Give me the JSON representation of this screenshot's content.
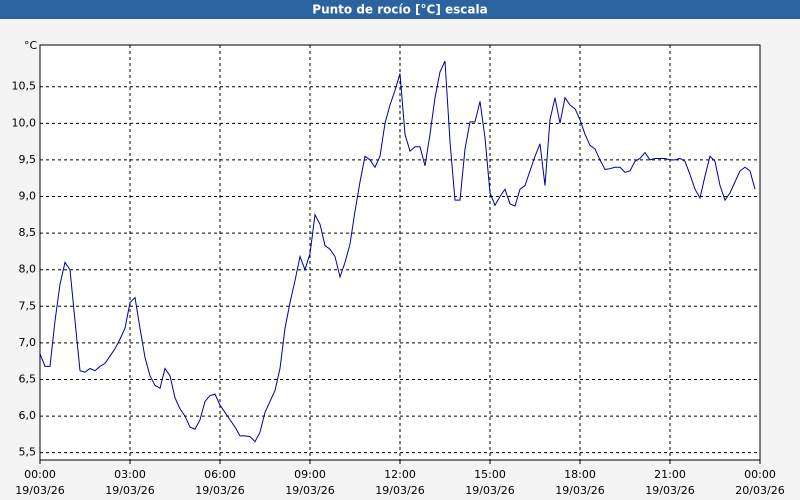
{
  "chart_data": {
    "type": "line",
    "title": "Punto de rocío [°C] escala",
    "y_unit": "°C",
    "color": "#0000a0",
    "grid": true,
    "xlim": [
      0,
      1440
    ],
    "ylim": [
      5.4,
      11.07
    ],
    "xticks": [
      {
        "value": 0,
        "label": "00:00",
        "date": "19/03/26"
      },
      {
        "value": 180,
        "label": "03:00",
        "date": "19/03/26"
      },
      {
        "value": 360,
        "label": "06:00",
        "date": "19/03/26"
      },
      {
        "value": 540,
        "label": "09:00",
        "date": "19/03/26"
      },
      {
        "value": 720,
        "label": "12:00",
        "date": "19/03/26"
      },
      {
        "value": 900,
        "label": "15:00",
        "date": "19/03/26"
      },
      {
        "value": 1080,
        "label": "18:00",
        "date": "19/03/26"
      },
      {
        "value": 1260,
        "label": "21:00",
        "date": "19/03/26"
      },
      {
        "value": 1440,
        "label": "00:00",
        "date": "20/03/26"
      }
    ],
    "yticks": [
      {
        "value": 5.5,
        "label": "5,5"
      },
      {
        "value": 6.0,
        "label": "6,0"
      },
      {
        "value": 6.5,
        "label": "6,5"
      },
      {
        "value": 7.0,
        "label": "7,0"
      },
      {
        "value": 7.5,
        "label": "7,5"
      },
      {
        "value": 8.0,
        "label": "8,0"
      },
      {
        "value": 8.5,
        "label": "8,5"
      },
      {
        "value": 9.0,
        "label": "9,0"
      },
      {
        "value": 9.5,
        "label": "9,5"
      },
      {
        "value": 10.0,
        "label": "10,0"
      },
      {
        "value": 10.5,
        "label": "10,5"
      }
    ],
    "x": [
      0,
      10,
      20,
      30,
      40,
      50,
      60,
      70,
      80,
      90,
      100,
      110,
      120,
      130,
      140,
      150,
      160,
      170,
      180,
      190,
      200,
      210,
      220,
      230,
      240,
      250,
      260,
      270,
      280,
      290,
      300,
      310,
      320,
      330,
      340,
      350,
      360,
      370,
      380,
      390,
      400,
      410,
      420,
      430,
      440,
      450,
      460,
      470,
      480,
      490,
      500,
      510,
      520,
      530,
      540,
      550,
      560,
      570,
      580,
      590,
      600,
      610,
      620,
      630,
      640,
      650,
      660,
      670,
      680,
      690,
      700,
      710,
      720,
      730,
      740,
      750,
      760,
      770,
      780,
      790,
      800,
      810,
      820,
      830,
      840,
      850,
      860,
      870,
      880,
      890,
      900,
      910,
      920,
      930,
      940,
      950,
      960,
      970,
      980,
      990,
      1000,
      1010,
      1020,
      1030,
      1040,
      1050,
      1060,
      1070,
      1080,
      1090,
      1100,
      1110,
      1120,
      1130,
      1140,
      1150,
      1160,
      1170,
      1180,
      1190,
      1200,
      1210,
      1220,
      1230,
      1240,
      1250,
      1260,
      1270,
      1280,
      1290,
      1300,
      1310,
      1320,
      1330,
      1340,
      1350,
      1360,
      1370,
      1380,
      1390,
      1400,
      1410,
      1420,
      1430
    ],
    "values": [
      6.85,
      6.68,
      6.68,
      7.3,
      7.8,
      8.1,
      8.0,
      7.3,
      6.62,
      6.6,
      6.65,
      6.62,
      6.68,
      6.72,
      6.82,
      6.92,
      7.05,
      7.2,
      7.55,
      7.62,
      7.2,
      6.8,
      6.55,
      6.42,
      6.38,
      6.65,
      6.55,
      6.25,
      6.1,
      6.0,
      5.85,
      5.82,
      5.95,
      6.2,
      6.28,
      6.3,
      6.15,
      6.05,
      5.95,
      5.85,
      5.73,
      5.73,
      5.72,
      5.65,
      5.78,
      6.05,
      6.2,
      6.35,
      6.65,
      7.2,
      7.55,
      7.85,
      8.18,
      8.0,
      8.22,
      8.75,
      8.62,
      8.33,
      8.28,
      8.18,
      7.9,
      8.1,
      8.35,
      8.8,
      9.2,
      9.55,
      9.5,
      9.4,
      9.55,
      10.0,
      10.25,
      10.45,
      10.68,
      9.85,
      9.62,
      9.68,
      9.68,
      9.42,
      9.85,
      10.35,
      10.7,
      10.85,
      9.75,
      8.95,
      8.95,
      9.65,
      10.02,
      10.02,
      10.3,
      9.8,
      9.05,
      8.88,
      9.0,
      9.1,
      8.9,
      8.87,
      9.1,
      9.15,
      9.35,
      9.55,
      9.72,
      9.15,
      10.05,
      10.35,
      10.0,
      10.35,
      10.25,
      10.2,
      10.05,
      9.85,
      9.7,
      9.65,
      9.5,
      9.37,
      9.38,
      9.4,
      9.4,
      9.33,
      9.35,
      9.48,
      9.52,
      9.6,
      9.5,
      9.52,
      9.52,
      9.52,
      9.5,
      9.5,
      9.52,
      9.48,
      9.3,
      9.1,
      8.98,
      9.28,
      9.55,
      9.48,
      9.15,
      8.95,
      9.05,
      9.2,
      9.35,
      9.4,
      9.35,
      9.1
    ]
  }
}
